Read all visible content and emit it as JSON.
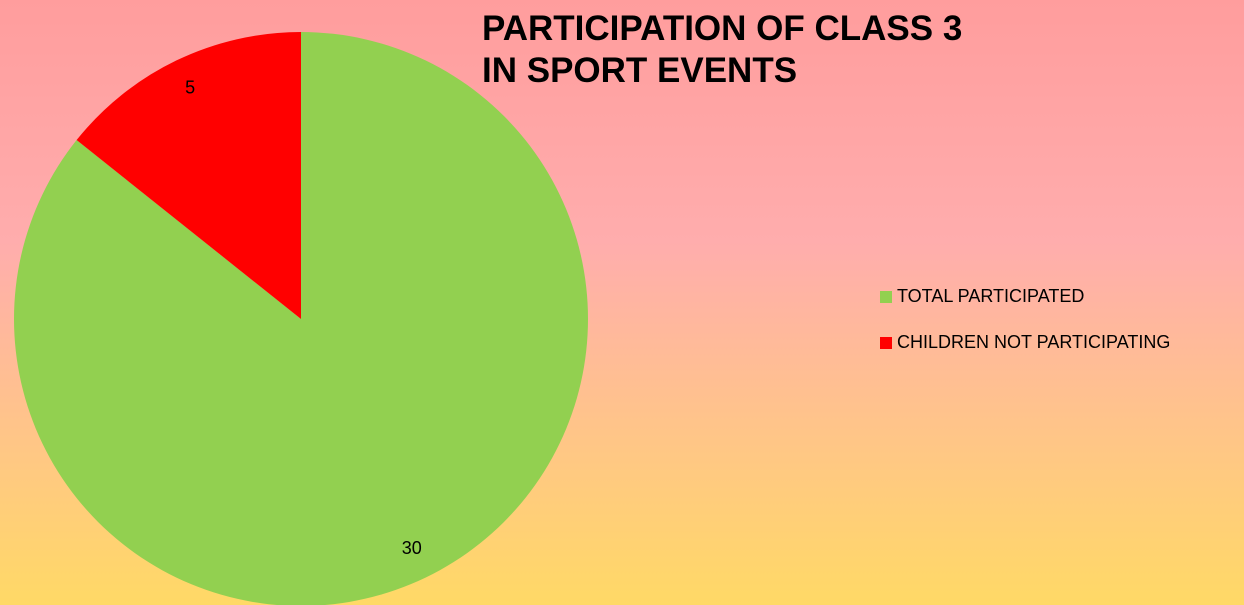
{
  "chart_data": {
    "type": "pie",
    "title": "PARTICIPATION OF CLASS 3\nIN SPORT EVENTS",
    "categories": [
      "TOTAL PARTICIPATED",
      "CHILDREN NOT PARTICIPATING"
    ],
    "values": [
      30,
      5
    ],
    "colors": [
      "#92d050",
      "#ff0000"
    ],
    "legend": "right"
  }
}
